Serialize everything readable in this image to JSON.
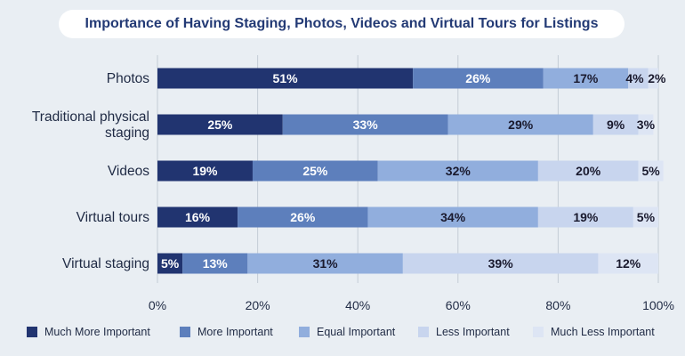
{
  "chart_data": {
    "type": "bar",
    "orientation": "horizontal",
    "stacked": true,
    "title": "Importance of Having Staging, Photos, Videos and Virtual Tours for Listings",
    "categories": [
      "Photos",
      "Traditional physical staging",
      "Videos",
      "Virtual tours",
      "Virtual staging"
    ],
    "series": [
      {
        "name": "Much More Important",
        "color": "#213470",
        "label_color": "#ffffff",
        "values": [
          51,
          25,
          19,
          16,
          5
        ]
      },
      {
        "name": "More Important",
        "color": "#5d7fbc",
        "label_color": "#ffffff",
        "values": [
          26,
          33,
          25,
          26,
          13
        ]
      },
      {
        "name": "Equal Important",
        "color": "#91aedd",
        "label_color": "#1a1a2e",
        "values": [
          17,
          29,
          32,
          34,
          31
        ]
      },
      {
        "name": "Less Important",
        "color": "#c8d5ee",
        "label_color": "#1a1a2e",
        "values": [
          4,
          9,
          20,
          19,
          39
        ]
      },
      {
        "name": "Much Less Important",
        "color": "#dde5f4",
        "label_color": "#1a1a2e",
        "values": [
          2,
          3,
          5,
          5,
          12
        ]
      }
    ],
    "xlim": [
      0,
      100
    ],
    "xticks": [
      "0%",
      "20%",
      "40%",
      "60%",
      "80%",
      "100%"
    ],
    "value_suffix": "%",
    "grid": true,
    "legend_position": "bottom"
  }
}
